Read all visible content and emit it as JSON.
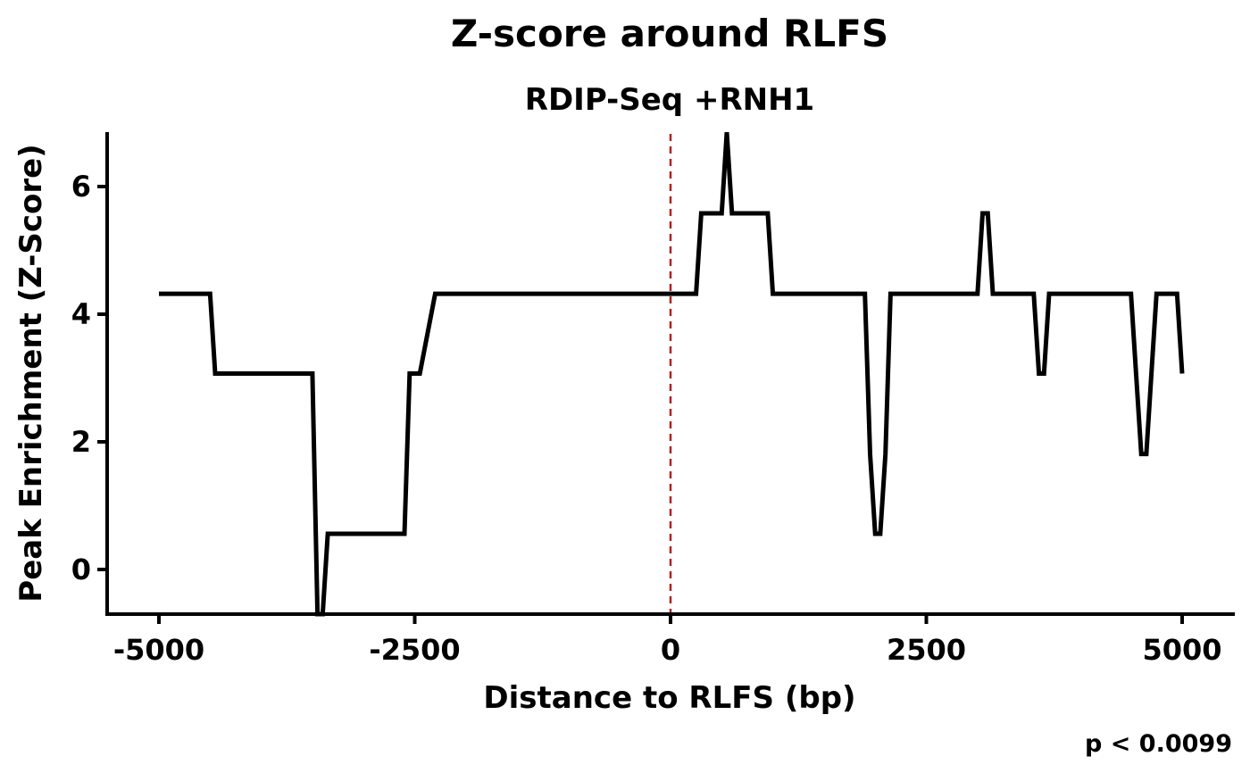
{
  "chart_data": {
    "type": "line",
    "title": "Z-score around RLFS",
    "subtitle": "RDIP-Seq +RNH1",
    "xlabel": "Distance to RLFS (bp)",
    "ylabel": "Peak Enrichment (Z-Score)",
    "caption": "p < 0.0099",
    "xlim": [
      -5500,
      5500
    ],
    "ylim": [
      -0.7,
      6.85
    ],
    "x_ticks": [
      -5000,
      -2500,
      0,
      2500,
      5000
    ],
    "x_tick_labels": [
      "-5000",
      "-2500",
      "0",
      "2500",
      "5000"
    ],
    "y_ticks": [
      0,
      2,
      4,
      6
    ],
    "y_tick_labels": [
      "0",
      "2",
      "4",
      "6"
    ],
    "reference_line": {
      "x": 0,
      "style": "dashed",
      "color": "#b22222"
    },
    "line_color": "#000000",
    "grid": false,
    "series": [
      {
        "x": [
          -5000,
          -4500,
          -4450,
          -3500,
          -3450,
          -3400,
          -3350,
          -2600,
          -2550,
          -2450,
          -2300,
          -2250,
          250,
          300,
          500,
          550,
          600,
          950,
          1000,
          1900,
          1950,
          2000,
          2050,
          2100,
          2150,
          3000,
          3050,
          3100,
          3150,
          3550,
          3600,
          3650,
          3700,
          4500,
          4550,
          4600,
          4650,
          4700,
          4750,
          4800,
          4950,
          5000
        ],
        "y": [
          4.32,
          4.32,
          3.07,
          3.07,
          -0.7,
          -0.7,
          0.56,
          0.56,
          3.07,
          3.07,
          4.32,
          4.32,
          4.32,
          5.58,
          5.58,
          6.85,
          5.58,
          5.58,
          4.32,
          4.32,
          1.81,
          0.56,
          0.56,
          1.81,
          4.32,
          4.32,
          5.58,
          5.58,
          4.32,
          4.32,
          3.07,
          3.07,
          4.32,
          4.32,
          3.07,
          1.81,
          1.81,
          3.07,
          4.32,
          4.32,
          4.32,
          3.07
        ]
      }
    ]
  }
}
